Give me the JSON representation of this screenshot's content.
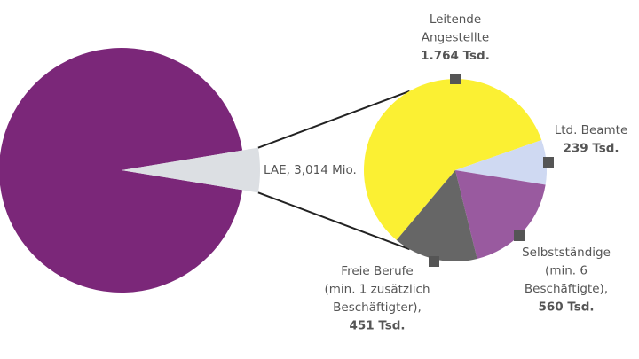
{
  "chart_data": [
    {
      "type": "pie",
      "values": [
        55,
        3.014
      ],
      "value_labels": [
        null,
        "LAE, 3,014 Mio."
      ],
      "colors": [
        "#7b2779",
        "#dcdfe3"
      ]
    },
    {
      "type": "pie",
      "categories": [
        [
          "Leitende",
          "Angestellte"
        ],
        [
          "Ltd. Beamte"
        ],
        [
          "Selbstständige",
          "(min. 6",
          "Beschäftigte),"
        ],
        [
          "Freie Berufe",
          "(min. 1 zusätzlich",
          "Beschäftigter),"
        ]
      ],
      "values": [
        1764,
        239,
        560,
        451
      ],
      "value_labels": [
        "1.764 Tsd.",
        "239 Tsd.",
        "560 Tsd.",
        "451 Tsd."
      ],
      "colors": [
        "#fbf033",
        "#cfd9f2",
        "#995a9f",
        "#666666"
      ]
    }
  ]
}
